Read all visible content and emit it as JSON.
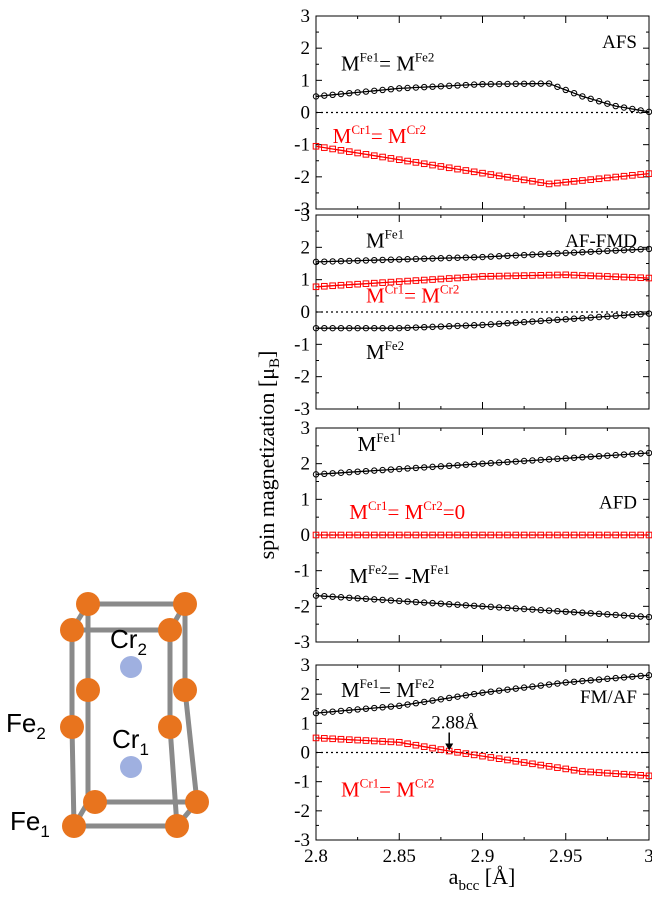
{
  "y_label": {
    "main": "spin magnetization [μ",
    "sub": "B",
    "close": "]"
  },
  "x_label": {
    "main": "a",
    "sub": "bcc",
    "rest": " [Å]"
  },
  "x_ticks": [
    "2.8",
    "2.85",
    "2.9",
    "2.95",
    "3"
  ],
  "y_ticks": [
    "3",
    "2",
    "1",
    "0",
    "-1",
    "-2",
    "-3"
  ],
  "crystal": {
    "labels": [
      {
        "id": "cr2",
        "base": "Cr",
        "sub": "2"
      },
      {
        "id": "cr1",
        "base": "Cr",
        "sub": "1"
      },
      {
        "id": "fe2",
        "base": "Fe",
        "sub": "2"
      },
      {
        "id": "fe1",
        "base": "Fe",
        "sub": "1"
      }
    ],
    "colors": {
      "fe": "#e8741e",
      "cr": "#9fb0e0",
      "bond": "#8a8a8a"
    }
  },
  "colors": {
    "fe_series": "#000000",
    "cr_series": "#ff0000"
  },
  "chart_data": [
    {
      "type": "line",
      "title": "AFS",
      "xlim": [
        2.8,
        3.0
      ],
      "ylim": [
        -3,
        3
      ],
      "x_range": [
        2.8,
        3.0
      ],
      "n_points": 41,
      "series": [
        {
          "name": "M^Fe1 = M^Fe2",
          "color": "#000000",
          "marker": "circle",
          "x": [
            2.8,
            2.85,
            2.9,
            2.94,
            2.96,
            2.98,
            3.0
          ],
          "y": [
            0.5,
            0.75,
            0.88,
            0.9,
            0.5,
            0.2,
            0.02
          ]
        },
        {
          "name": "M^Cr1 = M^Cr2",
          "color": "#ff0000",
          "marker": "square",
          "x": [
            2.8,
            2.94,
            3.0
          ],
          "y": [
            -1.05,
            -2.22,
            -1.9
          ]
        }
      ],
      "annotations": [
        {
          "label": "fe",
          "base": "M",
          "sup1": "Fe1",
          "mid": "= M",
          "sup2": "Fe2",
          "color": "#000000",
          "at": [
            2.815,
            1.3
          ]
        },
        {
          "label": "cr",
          "base": "M",
          "sup1": "Cr1",
          "mid": "= M",
          "sup2": "Cr2",
          "color": "#ff0000",
          "at": [
            2.81,
            -0.95
          ]
        }
      ]
    },
    {
      "type": "line",
      "title": "AF-FMD",
      "xlim": [
        2.8,
        3.0
      ],
      "ylim": [
        -3,
        3
      ],
      "x_range": [
        2.8,
        3.0
      ],
      "n_points": 41,
      "series": [
        {
          "name": "M^Fe1",
          "color": "#000000",
          "marker": "circle",
          "x": [
            2.8,
            2.9,
            3.0
          ],
          "y": [
            1.55,
            1.7,
            1.95
          ]
        },
        {
          "name": "M^Cr1 = M^Cr2",
          "color": "#ff0000",
          "marker": "square",
          "x": [
            2.8,
            2.9,
            2.95,
            3.0
          ],
          "y": [
            0.78,
            1.1,
            1.15,
            1.05
          ]
        },
        {
          "name": "M^Fe2",
          "color": "#000000",
          "marker": "circle",
          "x": [
            2.8,
            2.85,
            2.9,
            3.0
          ],
          "y": [
            -0.5,
            -0.5,
            -0.4,
            -0.05
          ]
        }
      ],
      "annotations": [
        {
          "label": "fe1",
          "base": "M",
          "sup1": "Fe1",
          "color": "#000000",
          "at": [
            2.83,
            2.0
          ]
        },
        {
          "label": "cr",
          "base": "M",
          "sup1": "Cr1",
          "mid": "= M",
          "sup2": "Cr2",
          "color": "#ff0000",
          "at": [
            2.83,
            0.3
          ]
        },
        {
          "label": "fe2",
          "base": "M",
          "sup1": "Fe2",
          "color": "#000000",
          "at": [
            2.83,
            -1.45
          ]
        }
      ]
    },
    {
      "type": "line",
      "title": "AFD",
      "xlim": [
        2.8,
        3.0
      ],
      "ylim": [
        -3,
        3
      ],
      "x_range": [
        2.8,
        3.0
      ],
      "n_points": 41,
      "series": [
        {
          "name": "M^Fe1",
          "color": "#000000",
          "marker": "circle",
          "x": [
            2.8,
            2.9,
            3.0
          ],
          "y": [
            1.7,
            2.0,
            2.3
          ]
        },
        {
          "name": "M^Cr1 = M^Cr2 = 0",
          "color": "#ff0000",
          "marker": "square",
          "x": [
            2.8,
            3.0
          ],
          "y": [
            0.0,
            0.0
          ]
        },
        {
          "name": "M^Fe2 = -M^Fe1",
          "color": "#000000",
          "marker": "circle",
          "x": [
            2.8,
            2.9,
            3.0
          ],
          "y": [
            -1.7,
            -2.0,
            -2.3
          ]
        }
      ],
      "annotations": [
        {
          "label": "fe1",
          "base": "M",
          "sup1": "Fe1",
          "color": "#000000",
          "at": [
            2.825,
            2.35
          ]
        },
        {
          "label": "cr",
          "base": "M",
          "sup1": "Cr1",
          "mid": "= M",
          "sup2": "Cr2",
          "tail": "=0",
          "color": "#ff0000",
          "at": [
            2.82,
            0.45
          ]
        },
        {
          "label": "fe2",
          "base": "M",
          "sup1": "Fe2",
          "mid": "= -M",
          "sup2": "Fe1",
          "color": "#000000",
          "at": [
            2.82,
            -1.35
          ]
        }
      ]
    },
    {
      "type": "line",
      "title": "FM/AF",
      "xlim": [
        2.8,
        3.0
      ],
      "ylim": [
        -3,
        3
      ],
      "x_range": [
        2.8,
        3.0
      ],
      "n_points": 41,
      "series": [
        {
          "name": "M^Fe1 = M^Fe2",
          "color": "#000000",
          "marker": "circle",
          "x": [
            2.8,
            2.85,
            2.9,
            2.95,
            3.0
          ],
          "y": [
            1.35,
            1.6,
            2.05,
            2.4,
            2.65
          ]
        },
        {
          "name": "M^Cr1 = M^Cr2",
          "color": "#ff0000",
          "marker": "square",
          "x": [
            2.8,
            2.85,
            2.88,
            2.92,
            2.96,
            3.0
          ],
          "y": [
            0.5,
            0.35,
            0.05,
            -0.3,
            -0.65,
            -0.8
          ]
        }
      ],
      "annotations": [
        {
          "label": "fe",
          "base": "M",
          "sup1": "Fe1",
          "mid": "= M",
          "sup2": "Fe2",
          "color": "#000000",
          "at": [
            2.815,
            1.9
          ]
        },
        {
          "label": "cr",
          "base": "M",
          "sup1": "Cr1",
          "mid": "= M",
          "sup2": "Cr2",
          "color": "#ff0000",
          "at": [
            2.815,
            -1.5
          ]
        },
        {
          "label": "arrow",
          "text": "2.88Å",
          "color": "#000000",
          "at": [
            2.88,
            0.0
          ]
        }
      ]
    }
  ]
}
